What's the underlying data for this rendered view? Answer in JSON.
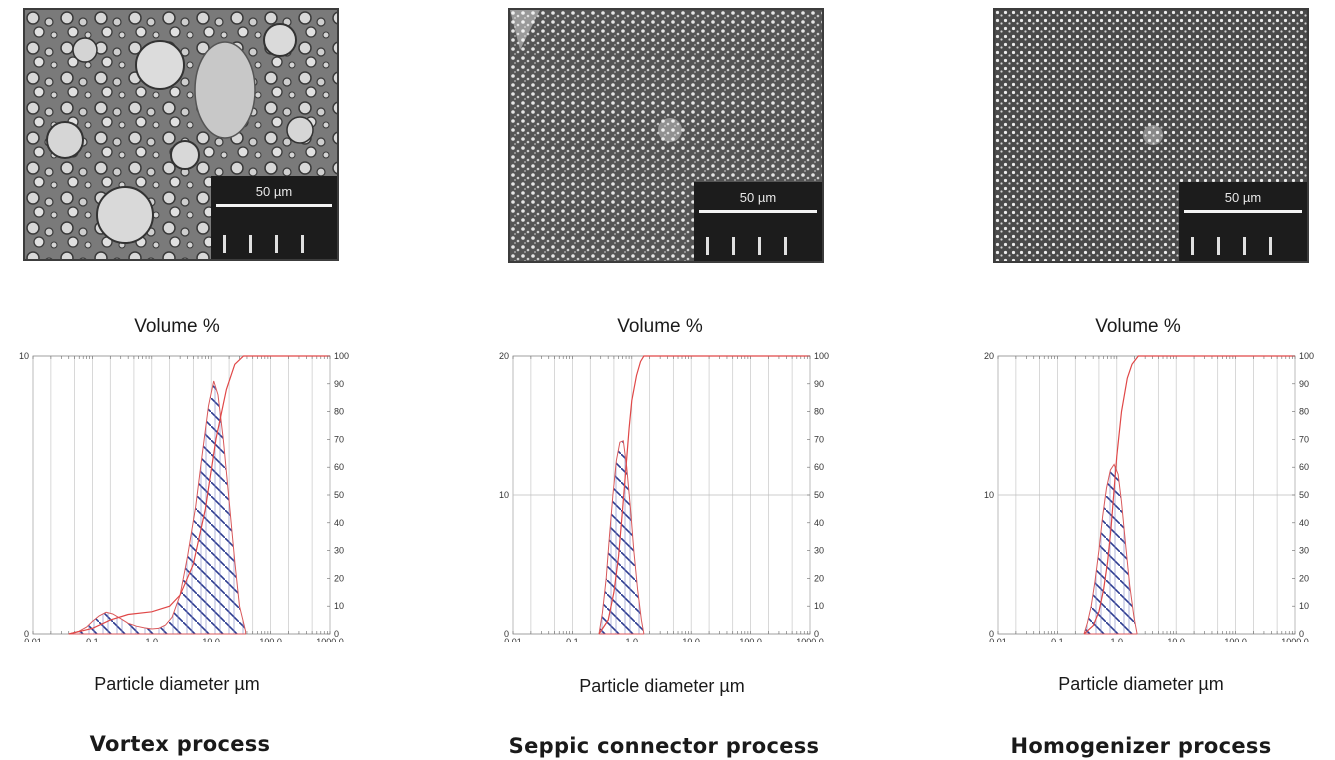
{
  "panels": [
    {
      "scale_label": "50 µm",
      "y_title": "Volume %",
      "x_title": "Particle diameter µm",
      "caption": "Vortex process"
    },
    {
      "scale_label": "50 µm",
      "y_title": "Volume %",
      "x_title": "Particle diameter µm",
      "caption": "Seppic connector process"
    },
    {
      "scale_label": "50 µm",
      "y_title": "Volume %",
      "x_title": "Particle diameter µm",
      "caption": "Homogenizer process"
    }
  ],
  "chart_data": [
    {
      "type": "bar",
      "title": "",
      "ylabel": "Volume %",
      "xlabel": "Particle diameter µm",
      "x_scale": "log",
      "xlim": [
        0.01,
        1000
      ],
      "x_ticks": [
        "0.01",
        "0.1",
        "1.0",
        "10.0",
        "100.0",
        "1000.0"
      ],
      "ylim_left": [
        0,
        10
      ],
      "y_ticks_left": [
        "0",
        "10"
      ],
      "ylim_right": [
        0,
        100
      ],
      "y_ticks_right": [
        "0",
        "10",
        "20",
        "30",
        "40",
        "50",
        "60",
        "70",
        "80",
        "90",
        "100"
      ],
      "series": [
        {
          "kind": "histogram",
          "points": [
            [
              0.04,
              0
            ],
            [
              0.06,
              0.1
            ],
            [
              0.08,
              0.25
            ],
            [
              0.1,
              0.45
            ],
            [
              0.13,
              0.65
            ],
            [
              0.17,
              0.78
            ],
            [
              0.22,
              0.72
            ],
            [
              0.3,
              0.55
            ],
            [
              0.4,
              0.38
            ],
            [
              0.55,
              0.28
            ],
            [
              0.75,
              0.22
            ],
            [
              1.0,
              0.18
            ],
            [
              1.3,
              0.2
            ],
            [
              1.7,
              0.32
            ],
            [
              2.2,
              0.6
            ],
            [
              3.0,
              1.4
            ],
            [
              4.0,
              2.8
            ],
            [
              5.5,
              4.6
            ],
            [
              7.0,
              6.4
            ],
            [
              9.0,
              8.2
            ],
            [
              11.0,
              9.1
            ],
            [
              13.0,
              8.6
            ],
            [
              16.0,
              7.0
            ],
            [
              20.0,
              4.8
            ],
            [
              25.0,
              2.6
            ],
            [
              30.0,
              1.0
            ],
            [
              38.0,
              0.1
            ]
          ]
        },
        {
          "kind": "cumulative",
          "points": [
            [
              0.04,
              0
            ],
            [
              0.1,
              2
            ],
            [
              0.2,
              5
            ],
            [
              0.4,
              7
            ],
            [
              1.0,
              8
            ],
            [
              2.0,
              10
            ],
            [
              3.0,
              14
            ],
            [
              5.0,
              25
            ],
            [
              8.0,
              45
            ],
            [
              12.0,
              70
            ],
            [
              18.0,
              88
            ],
            [
              25.0,
              97
            ],
            [
              35.0,
              100
            ],
            [
              1000.0,
              100
            ]
          ]
        }
      ]
    },
    {
      "type": "bar",
      "title": "",
      "ylabel": "Volume %",
      "xlabel": "Particle diameter µm",
      "x_scale": "log",
      "xlim": [
        0.01,
        1000
      ],
      "x_ticks": [
        "0.01",
        "0.1",
        "1.0",
        "10.0",
        "100.0",
        "1000.0"
      ],
      "ylim_left": [
        0,
        20
      ],
      "y_ticks_left": [
        "0",
        "10",
        "20"
      ],
      "ylim_right": [
        0,
        100
      ],
      "y_ticks_right": [
        "0",
        "10",
        "20",
        "30",
        "40",
        "50",
        "60",
        "70",
        "80",
        "90",
        "100"
      ],
      "series": [
        {
          "kind": "histogram",
          "points": [
            [
              0.28,
              0
            ],
            [
              0.32,
              1.5
            ],
            [
              0.37,
              4.0
            ],
            [
              0.42,
              7.0
            ],
            [
              0.48,
              10.0
            ],
            [
              0.55,
              12.5
            ],
            [
              0.63,
              13.8
            ],
            [
              0.72,
              13.9
            ],
            [
              0.82,
              12.0
            ],
            [
              0.95,
              9.0
            ],
            [
              1.08,
              6.0
            ],
            [
              1.25,
              3.2
            ],
            [
              1.45,
              1.0
            ],
            [
              1.6,
              0
            ]
          ]
        },
        {
          "kind": "cumulative",
          "points": [
            [
              0.28,
              0
            ],
            [
              0.4,
              5
            ],
            [
              0.5,
              15
            ],
            [
              0.6,
              28
            ],
            [
              0.7,
              45
            ],
            [
              0.8,
              60
            ],
            [
              0.9,
              74
            ],
            [
              1.0,
              84
            ],
            [
              1.2,
              93
            ],
            [
              1.4,
              98
            ],
            [
              1.6,
              100
            ],
            [
              1000.0,
              100
            ]
          ]
        }
      ]
    },
    {
      "type": "bar",
      "title": "",
      "ylabel": "Volume %",
      "xlabel": "Particle diameter µm",
      "x_scale": "log",
      "xlim": [
        0.01,
        1000
      ],
      "x_ticks": [
        "0.01",
        "0.1",
        "1.0",
        "10.0",
        "100.0",
        "1000.0"
      ],
      "ylim_left": [
        0,
        20
      ],
      "y_ticks_left": [
        "0",
        "10",
        "20"
      ],
      "ylim_right": [
        0,
        100
      ],
      "y_ticks_right": [
        "0",
        "10",
        "20",
        "30",
        "40",
        "50",
        "60",
        "70",
        "80",
        "90",
        "100"
      ],
      "series": [
        {
          "kind": "histogram",
          "points": [
            [
              0.28,
              0
            ],
            [
              0.32,
              0.8
            ],
            [
              0.37,
              2.0
            ],
            [
              0.43,
              3.8
            ],
            [
              0.5,
              6.0
            ],
            [
              0.58,
              8.5
            ],
            [
              0.67,
              10.5
            ],
            [
              0.78,
              11.8
            ],
            [
              0.9,
              12.2
            ],
            [
              1.05,
              11.5
            ],
            [
              1.2,
              9.5
            ],
            [
              1.4,
              6.5
            ],
            [
              1.65,
              3.5
            ],
            [
              1.95,
              1.2
            ],
            [
              2.2,
              0
            ]
          ]
        },
        {
          "kind": "cumulative",
          "points": [
            [
              0.28,
              0
            ],
            [
              0.4,
              3
            ],
            [
              0.5,
              8
            ],
            [
              0.6,
              16
            ],
            [
              0.7,
              26
            ],
            [
              0.8,
              38
            ],
            [
              0.9,
              52
            ],
            [
              1.0,
              64
            ],
            [
              1.2,
              80
            ],
            [
              1.5,
              92
            ],
            [
              1.8,
              97
            ],
            [
              2.3,
              100
            ],
            [
              1000.0,
              100
            ]
          ]
        }
      ]
    }
  ]
}
